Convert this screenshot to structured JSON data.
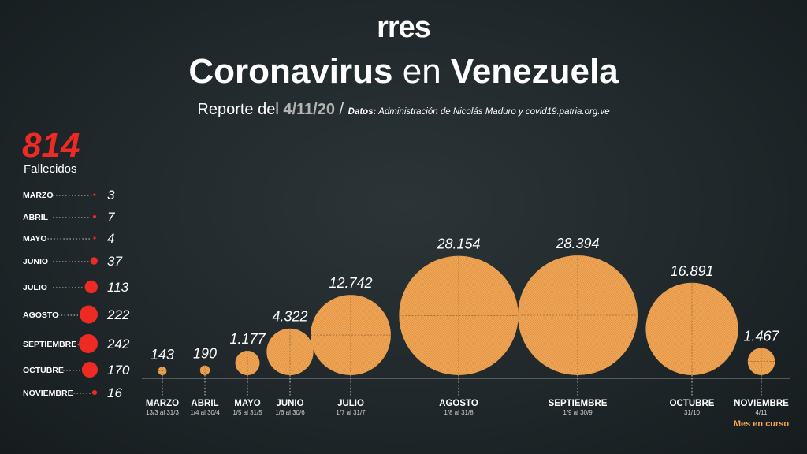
{
  "header": {
    "logo": "rres",
    "title_word_1": "Coronavirus",
    "title_word_2": "en",
    "title_word_3": "Venezuela",
    "report_label": "Reporte del",
    "report_date": "4/11/20",
    "separator": "/",
    "source_label": "Datos:",
    "source_text": "Administración de Nicolás Maduro y covid19.patria.org.ve"
  },
  "deaths": {
    "total": "814",
    "label": "Fallecidos"
  },
  "colors": {
    "deaths": "#ee2a24",
    "cases": "#f2a553",
    "accent_note": "#f2a553"
  },
  "note": "Mes en curso",
  "chart_data": [
    {
      "type": "bubble",
      "title": "",
      "series": [
        {
          "name": "Fallecidos"
        }
      ],
      "categories": [
        "MARZO",
        "ABRIL",
        "MAYO",
        "JUNIO",
        "JULIO",
        "AGOSTO",
        "SEPTIEMBRE",
        "OCTUBRE",
        "NOVIEMBRE"
      ],
      "values": [
        3,
        7,
        4,
        37,
        113,
        222,
        242,
        170,
        16
      ],
      "value_labels": [
        "3",
        "7",
        "4",
        "37",
        "113",
        "222",
        "242",
        "170",
        "16"
      ]
    },
    {
      "type": "bubble",
      "title": "",
      "categories": [
        "MARZO",
        "ABRIL",
        "MAYO",
        "JUNIO",
        "JULIO",
        "AGOSTO",
        "SEPTIEMBRE",
        "OCTUBRE",
        "NOVIEMBRE"
      ],
      "ranges": [
        "13/3 al 31/3",
        "1/4 al 30/4",
        "1/5 al 31/5",
        "1/6 al 30/6",
        "1/7 al 31/7",
        "1/8 al 31/8",
        "1/9 al 30/9",
        "31/10",
        "4/11"
      ],
      "values": [
        143,
        190,
        1177,
        4322,
        12742,
        28154,
        28394,
        16891,
        1467
      ],
      "value_labels": [
        "143",
        "190",
        "1.177",
        "4.322",
        "12.742",
        "28.154",
        "28.394",
        "16.891",
        "1.467"
      ]
    }
  ]
}
